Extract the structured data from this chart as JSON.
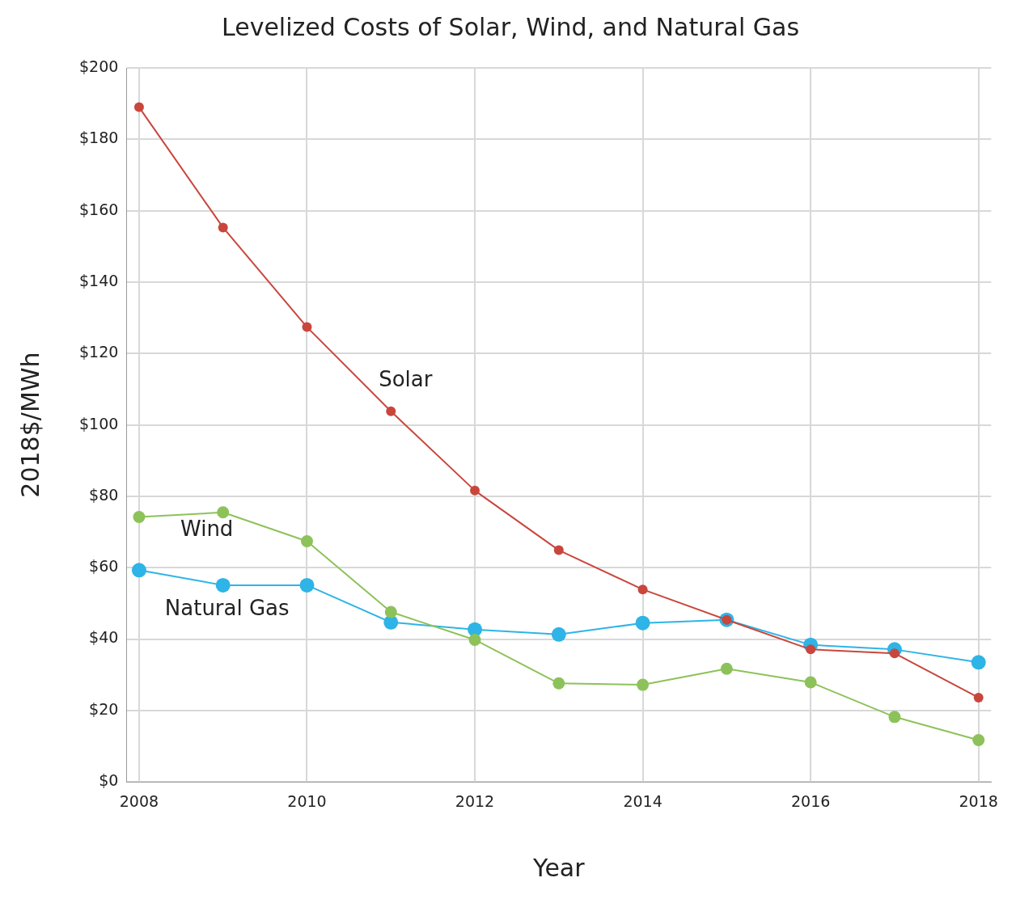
{
  "chart_data": {
    "type": "line",
    "title": "Levelized Costs of Solar, Wind, and Natural Gas",
    "xlabel": "Year",
    "ylabel": "2018$/MWh",
    "x": [
      2008,
      2009,
      2010,
      2011,
      2012,
      2013,
      2014,
      2015,
      2016,
      2017,
      2018
    ],
    "series": [
      {
        "name": "Solar",
        "color": "#c9463d",
        "values": [
          189,
          155.3,
          127.4,
          103.8,
          81.6,
          64.9,
          53.9,
          45.4,
          37.1,
          36,
          23.6
        ]
      },
      {
        "name": "Wind",
        "color": "#8dc25a",
        "values": [
          74.2,
          75.5,
          67.4,
          47.6,
          39.8,
          27.6,
          27.2,
          31.7,
          27.9,
          18.2,
          11.7
        ]
      },
      {
        "name": "Natural Gas",
        "color": "#2eb4e6",
        "values": [
          59.3,
          55.1,
          55.1,
          44.7,
          42.7,
          41.3,
          44.5,
          45.4,
          38.4,
          37.1,
          33.5
        ]
      }
    ],
    "xlim": [
      2007.85,
      2018.15
    ],
    "xticks": [
      2008,
      2010,
      2012,
      2014,
      2016,
      2018
    ],
    "ylim": [
      0,
      200
    ],
    "yticks": [
      {
        "value": 0,
        "label": "$0"
      },
      {
        "value": 20,
        "label": "$20"
      },
      {
        "value": 40,
        "label": "$40"
      },
      {
        "value": 60,
        "label": "$60"
      },
      {
        "value": 80,
        "label": "$80"
      },
      {
        "value": 100,
        "label": "$100"
      },
      {
        "value": 120,
        "label": "$120"
      },
      {
        "value": 140,
        "label": "$140"
      },
      {
        "value": 160,
        "label": "$160"
      },
      {
        "value": 180,
        "label": "$180"
      },
      {
        "value": 200,
        "label": "$200"
      }
    ],
    "grid": true,
    "legend": false,
    "marker": "circle",
    "line_style": "solid"
  }
}
